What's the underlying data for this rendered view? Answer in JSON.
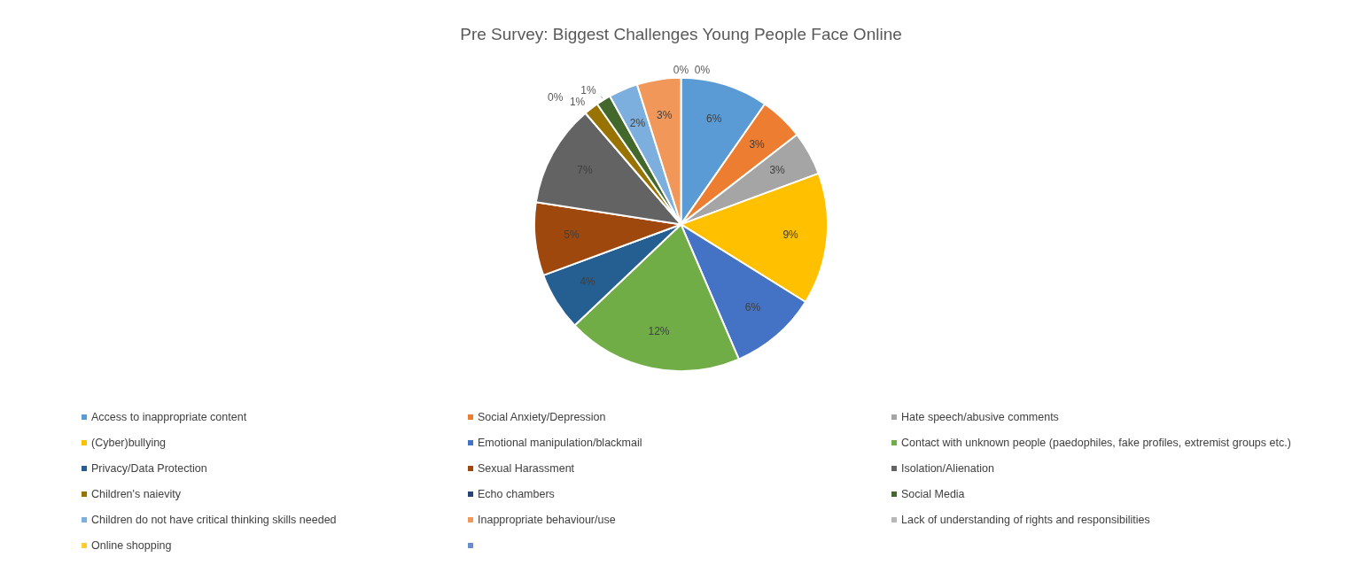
{
  "chart_data": {
    "type": "pie",
    "title": "Pre Survey: Biggest Challenges Young People Face Online",
    "categories": [
      "Access to inappropriate content",
      "Social Anxiety/Depression",
      "Hate speech/abusive comments",
      "(Cyber)bullying",
      "Emotional manipulation/blackmail",
      "Contact with unknown people (paedophiles, fake profiles, extremist groups etc.)",
      "Privacy/Data Protection",
      "Sexual Harassment",
      "Isolation/Alienation",
      "Children's naievity",
      "Echo chambers",
      "Social Media",
      "Children do not have critical thinking skills needed",
      "Inappropriate behaviour/use",
      "Lack of understanding of rights and responsibilities",
      "Online shopping",
      null
    ],
    "values": [
      6,
      3,
      3,
      9,
      6,
      12,
      4,
      5,
      7,
      1,
      0,
      1,
      2,
      3,
      0,
      0,
      0
    ],
    "value_labels": [
      "6%",
      "3%",
      "3%",
      "9%",
      "6%",
      "12%",
      "4%",
      "5%",
      "7%",
      "1%",
      "0%",
      "1%",
      "2%",
      "3%",
      "0%",
      "0%",
      null
    ],
    "colors": [
      "#5b9bd5",
      "#ed7d31",
      "#a5a5a5",
      "#ffc000",
      "#4472c4",
      "#70ad47",
      "#255e91",
      "#9e480e",
      "#636363",
      "#997300",
      "#264478",
      "#43682b",
      "#7cafdd",
      "#f1975a",
      "#b7b7b7",
      "#ffcd33",
      "#698ed0"
    ],
    "legend": "bottom"
  }
}
